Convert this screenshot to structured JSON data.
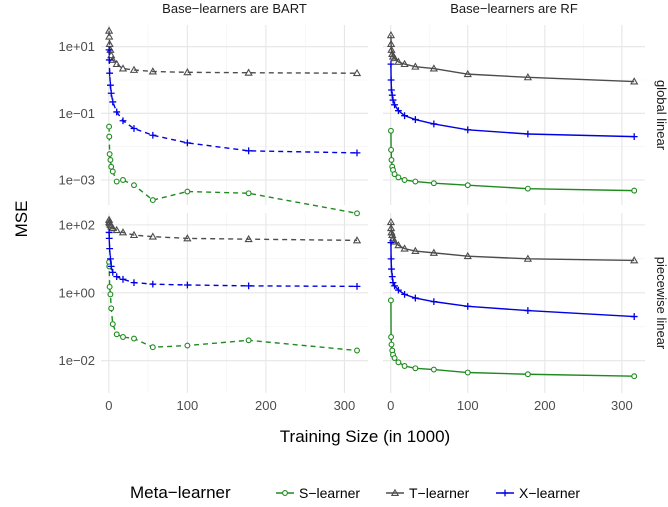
{
  "chart_data": {
    "type": "line",
    "xlabel": "Training Size (in 1000)",
    "ylabel": "MSE",
    "x": [
      0.3,
      0.5,
      1,
      2,
      3,
      5,
      10,
      18,
      32,
      56,
      100,
      178,
      316
    ],
    "x_ticks": [
      0,
      100,
      200,
      300
    ],
    "xlim": [
      -10,
      330
    ],
    "column_titles": [
      "Base−learners are BART",
      "Base−learners are RF"
    ],
    "row_titles": [
      "global linear",
      "piecewise linear"
    ],
    "rows": [
      {
        "y_scale": "log10",
        "ylim_log10": [
          -3.75,
          1.65
        ],
        "y_ticks": [
          {
            "value": 10,
            "label": "1e+01"
          },
          {
            "value": 0.1,
            "label": "1e−01"
          },
          {
            "value": 0.001,
            "label": "1e−03"
          }
        ]
      },
      {
        "y_scale": "log10",
        "ylim_log10": [
          -2.95,
          2.35
        ],
        "y_ticks": [
          {
            "value": 100,
            "label": "1e+02"
          },
          {
            "value": 1,
            "label": "1e+00"
          },
          {
            "value": 0.01,
            "label": "1e−02"
          }
        ]
      }
    ],
    "panels": [
      {
        "row": 0,
        "col": 0,
        "line_style": "dashed",
        "series": [
          {
            "name": "S−learner",
            "values": [
              0.04,
              0.02,
              0.006,
              0.004,
              0.0025,
              0.0018,
              0.0009,
              0.001,
              0.0007,
              0.00025,
              0.00045,
              0.0004,
              0.0001
            ]
          },
          {
            "name": "T−learner",
            "values": [
              30,
              20,
              12,
              8,
              5.5,
              4,
              3,
              2.2,
              2,
              1.8,
              1.7,
              1.65,
              1.6
            ]
          },
          {
            "name": "X−learner",
            "values": [
              8,
              4,
              1.6,
              0.7,
              0.4,
              0.22,
              0.11,
              0.06,
              0.035,
              0.022,
              0.013,
              0.0075,
              0.0065
            ]
          }
        ]
      },
      {
        "row": 0,
        "col": 1,
        "line_style": "solid",
        "series": [
          {
            "name": "S−learner",
            "values": [
              0.03,
              0.008,
              0.004,
              0.0025,
              0.002,
              0.0015,
              0.0012,
              0.001,
              0.0009,
              0.0008,
              0.0007,
              0.00055,
              0.00048
            ]
          },
          {
            "name": "T−learner",
            "values": [
              22,
              12,
              8,
              6,
              5,
              4.5,
              3.5,
              3,
              2.5,
              2.2,
              1.5,
              1.2,
              0.9
            ]
          },
          {
            "name": "X−learner",
            "values": [
              3,
              1,
              0.5,
              0.35,
              0.25,
              0.18,
              0.12,
              0.085,
              0.065,
              0.048,
              0.032,
              0.024,
              0.02
            ]
          }
        ]
      },
      {
        "row": 1,
        "col": 0,
        "line_style": "dashed",
        "series": [
          {
            "name": "S−learner",
            "values": [
              8,
              6,
              1.5,
              0.9,
              0.35,
              0.12,
              0.06,
              0.05,
              0.045,
              0.025,
              0.028,
              0.04,
              0.02
            ]
          },
          {
            "name": "T−learner",
            "values": [
              140,
              120,
              110,
              100,
              90,
              80,
              70,
              60,
              50,
              45,
              40,
              38,
              35
            ]
          },
          {
            "name": "X−learner",
            "values": [
              60,
              40,
              20,
              10,
              6,
              4,
              3,
              2.5,
              2,
              1.8,
              1.7,
              1.6,
              1.55
            ]
          }
        ]
      },
      {
        "row": 1,
        "col": 1,
        "line_style": "solid",
        "series": [
          {
            "name": "S−learner",
            "values": [
              0.6,
              0.05,
              0.03,
              0.02,
              0.015,
              0.012,
              0.009,
              0.007,
              0.006,
              0.0055,
              0.0045,
              0.004,
              0.0035
            ]
          },
          {
            "name": "T−learner",
            "values": [
              120,
              80,
              60,
              50,
              40,
              32,
              25,
              20,
              17,
              15,
              12,
              10,
              9
            ]
          },
          {
            "name": "X−learner",
            "values": [
              30,
              10,
              5,
              3,
              2,
              1.6,
              1.2,
              0.9,
              0.7,
              0.55,
              0.4,
              0.3,
              0.2
            ]
          }
        ]
      }
    ],
    "legend": {
      "title": "Meta−learner",
      "placement": "bottom",
      "entries": [
        "S−learner",
        "T−learner",
        "X−learner"
      ]
    },
    "colors": {
      "S−learner": "#1f8b1f",
      "T−learner": "#4d4d4d",
      "X−learner": "#0000e6",
      "grid_major": "#e6e6e6",
      "grid_minor": "#f2f2f2"
    },
    "markers": {
      "S−learner": "circle",
      "T−learner": "triangle",
      "X−learner": "plus"
    },
    "grid": true
  }
}
